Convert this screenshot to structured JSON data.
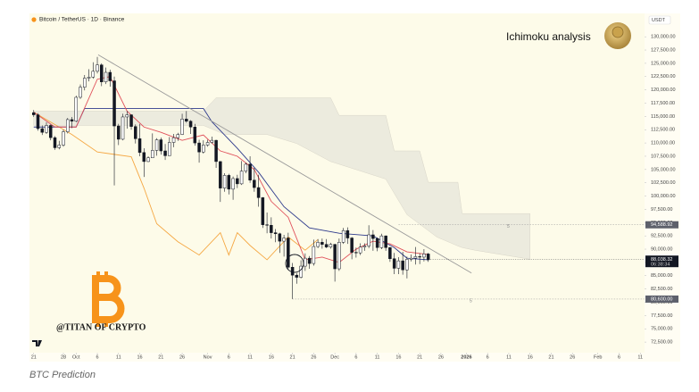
{
  "chart_data": {
    "type": "candlestick",
    "title": "Bitcoin / TetherUS · 1D · Binance",
    "annotation": "Ichimoku analysis",
    "watermark": "@TITAN OF CRYPTO",
    "caption": "BTC Prediction",
    "currency": "USDT",
    "ylim": [
      70500,
      134400
    ],
    "yticks": [
      {
        "value": 130000,
        "label": "130,000.00"
      },
      {
        "value": 127500,
        "label": "127,500.00"
      },
      {
        "value": 125000,
        "label": "125,000.00"
      },
      {
        "value": 122500,
        "label": "122,500.00"
      },
      {
        "value": 120000,
        "label": "120,000.00"
      },
      {
        "value": 117500,
        "label": "117,500.00"
      },
      {
        "value": 115000,
        "label": "115,000.00"
      },
      {
        "value": 112500,
        "label": "112,500.00"
      },
      {
        "value": 110000,
        "label": "110,000.00"
      },
      {
        "value": 107500,
        "label": "107,500.00"
      },
      {
        "value": 105000,
        "label": "105,000.00"
      },
      {
        "value": 102500,
        "label": "102,500.00"
      },
      {
        "value": 100000,
        "label": "100,000.00"
      },
      {
        "value": 97500,
        "label": "97,500.00"
      },
      {
        "value": 95000,
        "label": "95,000.00"
      },
      {
        "value": 92500,
        "label": "92,500.00"
      },
      {
        "value": 90000,
        "label": "90,000.00"
      },
      {
        "value": 87500,
        "label": "87,500.00"
      },
      {
        "value": 85000,
        "label": "85,000.00"
      },
      {
        "value": 82500,
        "label": "82,500.00"
      },
      {
        "value": 80000,
        "label": "80,000.00"
      },
      {
        "value": 77500,
        "label": "77,500.00"
      },
      {
        "value": 75000,
        "label": "75,000.00"
      },
      {
        "value": 72500,
        "label": "72,500.00"
      }
    ],
    "xlim": [
      -1,
      144
    ],
    "xticks": [
      {
        "value": 0,
        "label": "21"
      },
      {
        "value": 7,
        "label": "28"
      },
      {
        "value": 10,
        "label": "Oct"
      },
      {
        "value": 15,
        "label": "6"
      },
      {
        "value": 20,
        "label": "11"
      },
      {
        "value": 25,
        "label": "16"
      },
      {
        "value": 30,
        "label": "21"
      },
      {
        "value": 35,
        "label": "26"
      },
      {
        "value": 41,
        "label": "Nov"
      },
      {
        "value": 46,
        "label": "6"
      },
      {
        "value": 51,
        "label": "11"
      },
      {
        "value": 56,
        "label": "16"
      },
      {
        "value": 61,
        "label": "21"
      },
      {
        "value": 66,
        "label": "26"
      },
      {
        "value": 71,
        "label": "Dec"
      },
      {
        "value": 76,
        "label": "6"
      },
      {
        "value": 81,
        "label": "11"
      },
      {
        "value": 86,
        "label": "16"
      },
      {
        "value": 91,
        "label": "21"
      },
      {
        "value": 96,
        "label": "26"
      },
      {
        "value": 102,
        "label": "2026"
      },
      {
        "value": 107,
        "label": "6"
      },
      {
        "value": 112,
        "label": "11"
      },
      {
        "value": 117,
        "label": "16"
      },
      {
        "value": 122,
        "label": "21"
      },
      {
        "value": 127,
        "label": "26"
      },
      {
        "value": 133,
        "label": "Feb"
      },
      {
        "value": 138,
        "label": "6"
      },
      {
        "value": 143,
        "label": "11"
      }
    ],
    "up_color": "#ffffff",
    "down_color": "#131722",
    "outline_color": "#131722",
    "x": [
      0,
      1,
      2,
      3,
      4,
      5,
      6,
      7,
      8,
      9,
      10,
      11,
      12,
      13,
      14,
      15,
      16,
      17,
      18,
      19,
      20,
      21,
      22,
      23,
      24,
      25,
      26,
      27,
      28,
      29,
      30,
      31,
      32,
      33,
      34,
      35,
      36,
      37,
      38,
      39,
      40,
      41,
      42,
      43,
      44,
      45,
      46,
      47,
      48,
      49,
      50,
      51,
      52,
      53,
      54,
      55,
      56,
      57,
      58,
      59,
      60,
      61,
      62,
      63,
      64,
      65,
      66,
      67,
      68,
      69,
      70,
      71,
      72,
      73,
      74,
      75,
      76,
      77,
      78,
      79,
      80,
      81,
      82,
      83,
      84,
      85,
      86,
      87,
      88,
      89,
      90,
      91,
      92,
      93
    ],
    "open": [
      115700,
      115300,
      112700,
      112000,
      113300,
      111000,
      109100,
      109600,
      112100,
      114400,
      114100,
      118600,
      120500,
      122200,
      122400,
      123500,
      124700,
      121500,
      123300,
      121700,
      113200,
      110700,
      114900,
      115300,
      113100,
      110800,
      108200,
      106500,
      107200,
      108600,
      110600,
      108500,
      107600,
      110100,
      111000,
      111600,
      114500,
      114100,
      113000,
      110000,
      108300,
      109600,
      110100,
      110500,
      106500,
      101500,
      103900,
      101300,
      103300,
      102300,
      104700,
      106000,
      103000,
      101600,
      99700,
      94600,
      94500,
      93100,
      92900,
      91500,
      92100,
      86600,
      85100,
      84700,
      86800,
      88300,
      87300,
      90500,
      91300,
      90900,
      90400,
      90900,
      86300,
      91300,
      93500,
      92100,
      89400,
      89300,
      90400,
      90600,
      92700,
      92000,
      90300,
      92500,
      90300,
      88200,
      86400,
      87800,
      86100,
      88100,
      88300,
      88600,
      88500,
      89100
    ],
    "high": [
      116200,
      115600,
      113300,
      113900,
      113500,
      111300,
      110400,
      112500,
      114700,
      114900,
      118900,
      121000,
      122800,
      123900,
      125200,
      126200,
      125000,
      124200,
      123800,
      122500,
      113600,
      115500,
      116000,
      115400,
      113500,
      113600,
      109000,
      107500,
      111800,
      110900,
      111000,
      109800,
      111100,
      111700,
      111900,
      115500,
      116000,
      114300,
      113600,
      110600,
      110500,
      110600,
      111200,
      110600,
      106600,
      104300,
      104200,
      103700,
      104000,
      106600,
      106300,
      107500,
      105300,
      104000,
      99800,
      96900,
      96000,
      93800,
      93100,
      92700,
      93100,
      87400,
      85500,
      87900,
      89200,
      88700,
      91800,
      91900,
      92000,
      91900,
      91200,
      91000,
      92000,
      94000,
      94100,
      92300,
      90300,
      91100,
      91100,
      94500,
      93600,
      92200,
      92900,
      92600,
      90400,
      89300,
      88500,
      89500,
      88600,
      89000,
      90400,
      89200,
      90000,
      89300
    ],
    "low": [
      114900,
      112300,
      111500,
      111700,
      110500,
      108700,
      108800,
      109300,
      111800,
      112800,
      113900,
      118300,
      119900,
      121600,
      122100,
      123100,
      120700,
      121100,
      120600,
      102000,
      109600,
      110500,
      112700,
      112500,
      109900,
      107500,
      103600,
      106400,
      107200,
      107600,
      107800,
      106800,
      107600,
      109200,
      110400,
      111500,
      113800,
      111700,
      109500,
      106300,
      108000,
      109300,
      109900,
      105300,
      98900,
      100800,
      100300,
      99300,
      101500,
      102100,
      104300,
      102500,
      100800,
      98000,
      94000,
      93000,
      92000,
      91300,
      89300,
      88600,
      86200,
      80600,
      83500,
      84500,
      85900,
      86300,
      86900,
      90200,
      90100,
      90200,
      90100,
      83900,
      85900,
      91000,
      91000,
      88100,
      88400,
      88900,
      89700,
      90200,
      89700,
      89600,
      90000,
      89700,
      87600,
      85300,
      85300,
      85200,
      84500,
      87700,
      87100,
      87200,
      87700,
      87600
    ],
    "close": [
      115300,
      112700,
      112000,
      113300,
      111000,
      109100,
      109600,
      112100,
      114400,
      114100,
      118600,
      120500,
      122200,
      122400,
      123500,
      124700,
      121500,
      123300,
      121700,
      113200,
      110700,
      114900,
      115300,
      113100,
      110800,
      108200,
      106500,
      107200,
      108600,
      110600,
      108500,
      107600,
      110100,
      111000,
      111600,
      114500,
      114100,
      113000,
      110000,
      108300,
      109600,
      110100,
      110500,
      106500,
      101500,
      103900,
      101300,
      103300,
      102300,
      104700,
      106000,
      103000,
      101600,
      99700,
      94600,
      94500,
      93100,
      92900,
      91500,
      92100,
      86600,
      85100,
      84700,
      86800,
      88300,
      87300,
      90500,
      91300,
      90900,
      90400,
      90900,
      86300,
      91300,
      93500,
      92100,
      89400,
      89300,
      90400,
      90600,
      92700,
      92000,
      90300,
      92500,
      90300,
      88200,
      86400,
      87800,
      86100,
      88100,
      88300,
      88600,
      88500,
      89100,
      88000
    ],
    "cloud": {
      "color": "#e9e7dc",
      "x": [
        0,
        40,
        43,
        45,
        55,
        62,
        70,
        72,
        83,
        85,
        88,
        91,
        93,
        95,
        100,
        101,
        104,
        117
      ],
      "upper": [
        116000,
        116000,
        118500,
        118500,
        118500,
        118500,
        118500,
        115200,
        115200,
        108500,
        108500,
        108500,
        102600,
        102600,
        102600,
        96700,
        96700,
        96700
      ],
      "lower": [
        113300,
        113300,
        112300,
        111600,
        111600,
        109900,
        106500,
        106000,
        103200,
        100500,
        96500,
        94700,
        93500,
        92300,
        90600,
        90300,
        89800,
        88100
      ]
    },
    "lines": [
      {
        "color": "#f5a742",
        "x": [
          0,
          9,
          15,
          23,
          26,
          29,
          34,
          39,
          44,
          46,
          48,
          51,
          55,
          60,
          64,
          67
        ],
        "values": [
          115800,
          111600,
          108300,
          107400,
          101500,
          94800,
          91400,
          88900,
          93100,
          88900,
          93100,
          90700,
          88000,
          92300,
          89800,
          91800
        ]
      },
      {
        "color": "#2e3a8c",
        "x": [
          0,
          10,
          12,
          36,
          40,
          42,
          48,
          53,
          59,
          65,
          72,
          80,
          85,
          88,
          93
        ],
        "values": [
          113000,
          113000,
          116500,
          116500,
          116500,
          114000,
          109000,
          104500,
          98000,
          94000,
          93000,
          92500,
          90300,
          88300,
          88000
        ]
      },
      {
        "color": "#e0505a",
        "x": [
          0,
          5,
          10,
          15,
          18,
          22,
          26,
          30,
          35,
          40,
          44,
          48,
          52,
          56,
          60,
          64,
          68,
          72,
          76,
          80,
          84,
          88,
          93
        ],
        "values": [
          115800,
          113000,
          113000,
          122000,
          122500,
          116000,
          113000,
          112000,
          110500,
          111500,
          108500,
          107500,
          105000,
          99000,
          96000,
          88000,
          88500,
          87500,
          90000,
          91500,
          91000,
          89500,
          89000
        ]
      },
      {
        "color": "#9a9a9a",
        "x": [
          15.2,
          103.2
        ],
        "values": [
          126600,
          85500
        ]
      }
    ],
    "levels": [
      {
        "value": 94588.92,
        "label": "94,588.92",
        "marker": "5"
      },
      {
        "value": 80600,
        "label": "80,600.00",
        "marker": "5"
      }
    ],
    "current": {
      "value": 88038.32,
      "label": "88,038.32",
      "countdown": "06:38:34"
    }
  }
}
